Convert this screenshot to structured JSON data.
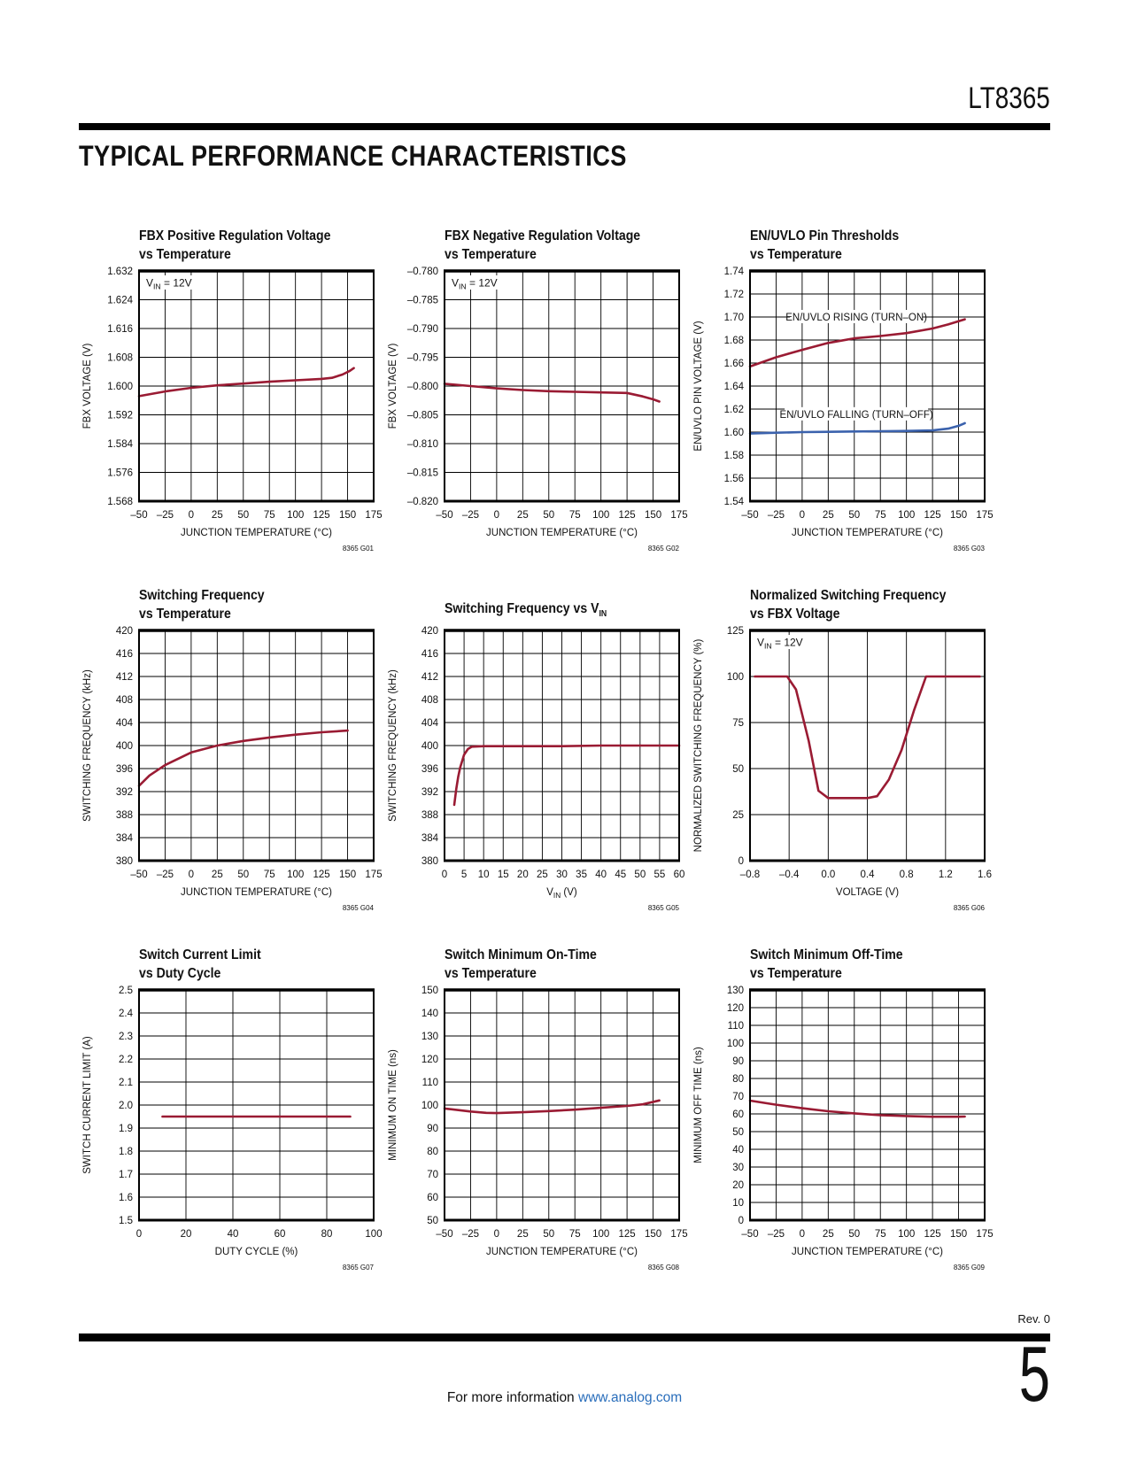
{
  "page": {
    "part_number": "LT8365",
    "section_title": "TYPICAL PERFORMANCE CHARACTERISTICS",
    "footer": {
      "rev": "Rev. 0",
      "info_text": "For more information ",
      "info_link": "www.analog.com",
      "page_number": "5"
    }
  },
  "colors": {
    "curve_red": "#9a1b33",
    "curve_blue": "#3b62ad",
    "link_blue": "#2a6ebb"
  },
  "chart_data": [
    {
      "id": "8365 G01",
      "type": "line",
      "title_lines": [
        "FBX Positive Regulation Voltage",
        "vs Temperature"
      ],
      "xlabel": "JUNCTION TEMPERATURE (°C)",
      "ylabel": "FBX VOLTAGE (V)",
      "xlim": [
        -50,
        175
      ],
      "xstep": 25,
      "xdecimals": 0,
      "ylim": [
        1.568,
        1.632
      ],
      "ystep": 0.008,
      "ydecimals": 3,
      "annotation": "V~IN~ = 12V",
      "series": [
        {
          "name": "FBX positive regulation voltage",
          "color": "red",
          "x": [
            -50,
            -25,
            0,
            25,
            50,
            75,
            100,
            125,
            135,
            145,
            152,
            156
          ],
          "y": [
            1.5972,
            1.5985,
            1.5995,
            1.6002,
            1.6007,
            1.6012,
            1.6016,
            1.602,
            1.6023,
            1.6032,
            1.6042,
            1.605
          ]
        }
      ],
      "labels": []
    },
    {
      "id": "8365 G02",
      "type": "line",
      "title_lines": [
        "FBX Negative Regulation Voltage",
        "vs Temperature"
      ],
      "xlabel": "JUNCTION TEMPERATURE (°C)",
      "ylabel": "FBX VOLTAGE (V)",
      "xlim": [
        -50,
        175
      ],
      "xstep": 25,
      "xdecimals": 0,
      "ylim": [
        -0.82,
        -0.78
      ],
      "ystep": 0.005,
      "ydecimals": 3,
      "annotation": "V~IN~ = 12V",
      "series": [
        {
          "name": "FBX negative regulation voltage",
          "color": "red",
          "x": [
            -50,
            -25,
            0,
            25,
            50,
            75,
            100,
            125,
            140,
            150,
            156
          ],
          "y": [
            -0.7996,
            -0.8,
            -0.8004,
            -0.8007,
            -0.8009,
            -0.801,
            -0.8011,
            -0.8012,
            -0.8018,
            -0.8023,
            -0.8027
          ]
        }
      ],
      "labels": []
    },
    {
      "id": "8365 G03",
      "type": "line",
      "title_lines": [
        "EN/UVLO Pin Thresholds",
        "vs Temperature"
      ],
      "xlabel": "JUNCTION TEMPERATURE (°C)",
      "ylabel": "EN/UVLO PIN VOLTAGE (V)",
      "xlim": [
        -50,
        175
      ],
      "xstep": 25,
      "xdecimals": 0,
      "ylim": [
        1.54,
        1.74
      ],
      "ystep": 0.02,
      "ydecimals": 2,
      "annotation": "",
      "series": [
        {
          "name": "EN/UVLO rising (turn-on)",
          "color": "red",
          "x": [
            -50,
            -25,
            0,
            25,
            50,
            75,
            100,
            125,
            140,
            156
          ],
          "y": [
            1.657,
            1.665,
            1.6715,
            1.6775,
            1.6815,
            1.6835,
            1.686,
            1.69,
            1.6935,
            1.698
          ]
        },
        {
          "name": "EN/UVLO falling (turn-off)",
          "color": "blue",
          "x": [
            -50,
            -25,
            0,
            25,
            50,
            75,
            100,
            125,
            140,
            150,
            156
          ],
          "y": [
            1.5988,
            1.5995,
            1.6,
            1.6002,
            1.6005,
            1.6008,
            1.601,
            1.6015,
            1.603,
            1.6055,
            1.6078
          ]
        }
      ],
      "labels": [
        {
          "text": "EN/UVLO RISING (TURN–ON)",
          "x": 52,
          "y": 1.7
        },
        {
          "text": "EN/UVLO FALLING (TURN–OFF)",
          "x": 52,
          "y": 1.6155
        }
      ]
    },
    {
      "id": "8365 G04",
      "type": "line",
      "title_lines": [
        "Switching Frequency",
        "vs Temperature"
      ],
      "xlabel": "JUNCTION TEMPERATURE (°C)",
      "ylabel": "SWITCHING FREQUENCY (kHz)",
      "xlim": [
        -50,
        175
      ],
      "xstep": 25,
      "xdecimals": 0,
      "ylim": [
        380,
        420
      ],
      "ystep": 4,
      "ydecimals": 0,
      "annotation": "",
      "series": [
        {
          "name": "switching frequency",
          "color": "red",
          "x": [
            -50,
            -40,
            -25,
            0,
            25,
            50,
            75,
            100,
            125,
            150
          ],
          "y": [
            393,
            394.8,
            396.6,
            398.8,
            400,
            400.8,
            401.4,
            401.9,
            402.3,
            402.6
          ]
        }
      ],
      "labels": []
    },
    {
      "id": "8365 G05",
      "type": "line",
      "title_lines": [
        "",
        "Switching Frequency vs V~IN~"
      ],
      "xlabel": "V~IN~ (V)",
      "ylabel": "SWITCHING FREQUENCY (kHz)",
      "xlim": [
        0,
        60
      ],
      "xstep": 5,
      "xdecimals": 0,
      "ylim": [
        380,
        420
      ],
      "ystep": 4,
      "ydecimals": 0,
      "annotation": "",
      "series": [
        {
          "name": "switching frequency",
          "color": "red",
          "x": [
            2.5,
            3,
            3.5,
            4,
            5,
            6,
            7,
            10,
            20,
            30,
            40,
            50,
            60
          ],
          "y": [
            389.7,
            392.5,
            394.6,
            396.2,
            398.4,
            399.4,
            399.8,
            399.9,
            399.9,
            399.9,
            400,
            400,
            400
          ]
        }
      ],
      "labels": []
    },
    {
      "id": "8365 G06",
      "type": "line",
      "title_lines": [
        "Normalized Switching Frequency",
        "vs FBX Voltage"
      ],
      "xlabel": "VOLTAGE (V)",
      "ylabel": "NORMALIZED SWITCHING FREQUENCY (%)",
      "xlim": [
        -0.8,
        1.6
      ],
      "xstep": 0.4,
      "xdecimals": 1,
      "ylim": [
        0,
        125
      ],
      "ystep": 25,
      "ydecimals": 0,
      "annotation": "V~IN~ = 12V",
      "series": [
        {
          "name": "normalized switching frequency",
          "color": "red",
          "x": [
            -0.75,
            -0.42,
            -0.33,
            -0.2,
            -0.1,
            0.0,
            0.4,
            0.5,
            0.62,
            0.75,
            0.88,
            1.0,
            1.55
          ],
          "y": [
            100,
            100,
            93,
            65,
            38,
            34,
            34,
            35,
            44,
            60,
            82,
            100,
            100
          ]
        }
      ],
      "labels": []
    },
    {
      "id": "8365 G07",
      "type": "line",
      "title_lines": [
        "Switch Current Limit",
        "vs Duty Cycle"
      ],
      "xlabel": "DUTY CYCLE (%)",
      "ylabel": "SWITCH CURRENT LIMIT (A)",
      "xlim": [
        0,
        100
      ],
      "xstep": 20,
      "xdecimals": 0,
      "ylim": [
        1.5,
        2.5
      ],
      "ystep": 0.1,
      "ydecimals": 1,
      "annotation": "",
      "series": [
        {
          "name": "switch current limit",
          "color": "red",
          "x": [
            10,
            30,
            50,
            70,
            90
          ],
          "y": [
            1.95,
            1.95,
            1.95,
            1.95,
            1.95
          ]
        }
      ],
      "labels": []
    },
    {
      "id": "8365 G08",
      "type": "line",
      "title_lines": [
        "Switch Minimum On-Time",
        "vs Temperature"
      ],
      "xlabel": "JUNCTION TEMPERATURE (°C)",
      "ylabel": "MINIMUM ON TIME (ns)",
      "xlim": [
        -50,
        175
      ],
      "xstep": 25,
      "xdecimals": 0,
      "ylim": [
        50,
        150
      ],
      "ystep": 10,
      "ydecimals": 0,
      "annotation": "",
      "series": [
        {
          "name": "minimum on time",
          "color": "red",
          "x": [
            -50,
            -25,
            -10,
            0,
            25,
            50,
            75,
            100,
            125,
            140,
            156
          ],
          "y": [
            98.5,
            97.2,
            96.6,
            96.5,
            96.9,
            97.4,
            98,
            98.8,
            99.6,
            100.3,
            102
          ]
        }
      ],
      "labels": []
    },
    {
      "id": "8365 G09",
      "type": "line",
      "title_lines": [
        "Switch Minimum Off-Time",
        "vs Temperature"
      ],
      "xlabel": "JUNCTION TEMPERATURE (°C)",
      "ylabel": "MINIMUM OFF TIME (ns)",
      "xlim": [
        -50,
        175
      ],
      "xstep": 25,
      "xdecimals": 0,
      "ylim": [
        0,
        130
      ],
      "ystep": 10,
      "ydecimals": 0,
      "annotation": "",
      "series": [
        {
          "name": "minimum off time",
          "color": "red",
          "x": [
            -50,
            -25,
            0,
            25,
            50,
            75,
            100,
            125,
            150,
            156
          ],
          "y": [
            67.5,
            65.2,
            63.2,
            61.5,
            60.3,
            59.3,
            58.8,
            58.4,
            58.4,
            58.5
          ]
        }
      ],
      "labels": []
    }
  ]
}
